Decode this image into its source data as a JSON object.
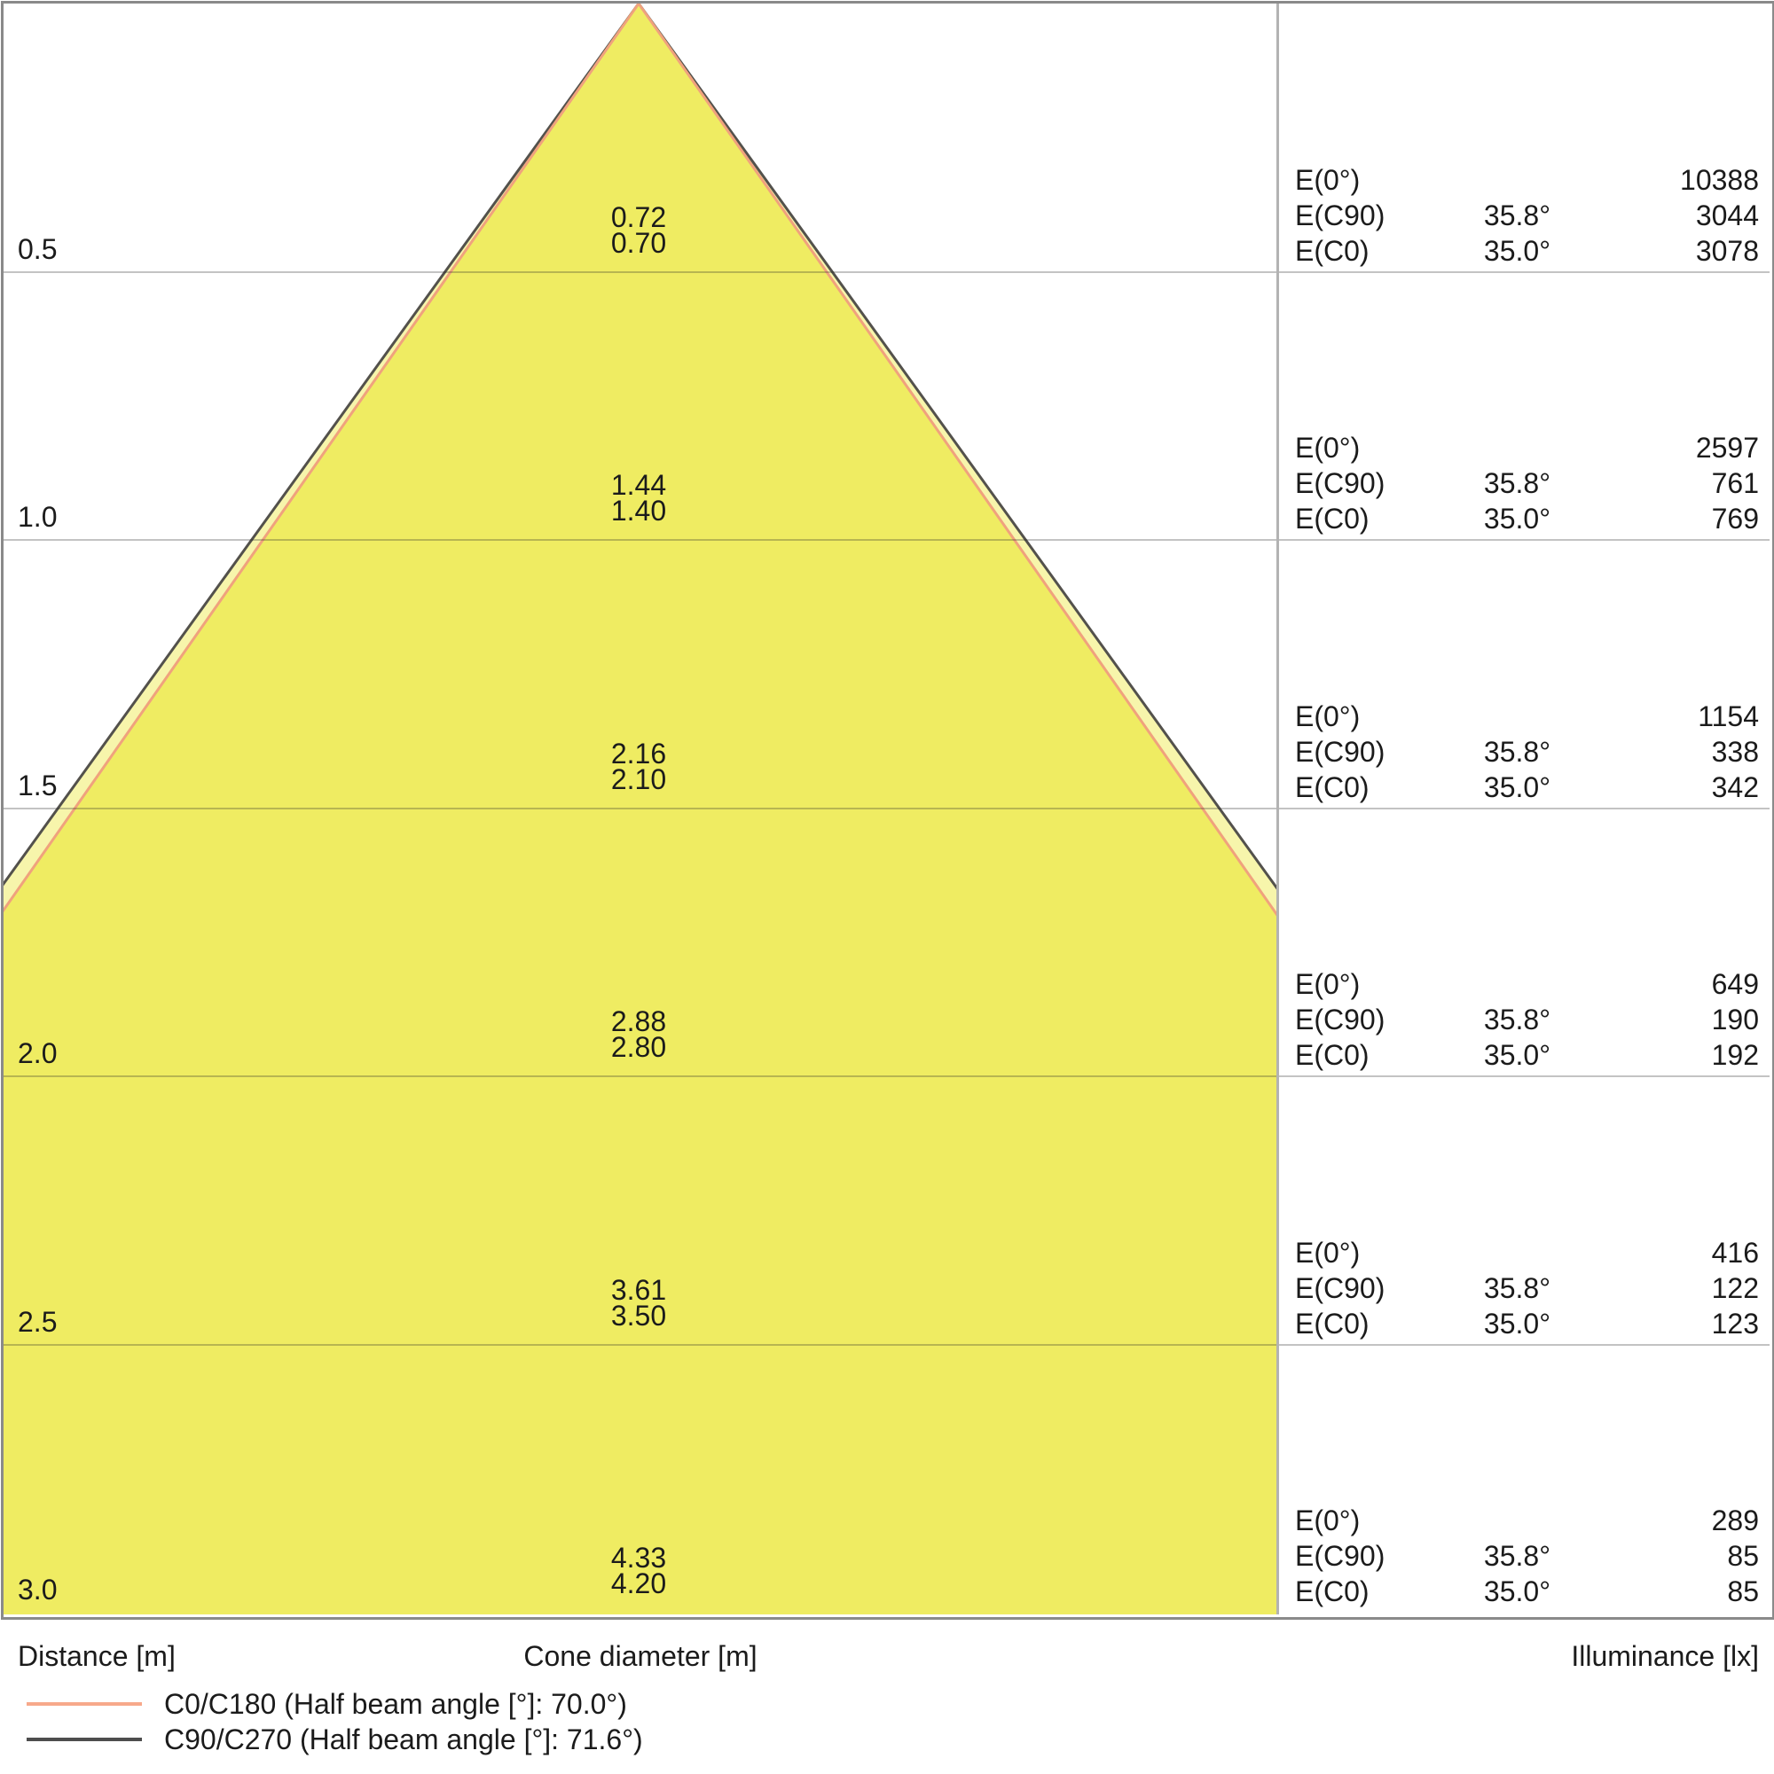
{
  "chart_data": {
    "type": "area",
    "description": "Luminaire light cone diagram: cone diameter and illuminance vs distance",
    "axis_labels": {
      "distance": "Distance [m]",
      "cone_diameter": "Cone diameter [m]",
      "illuminance": "Illuminance [lx]"
    },
    "row_labels": {
      "e0": "E(0°)",
      "ec90": "E(C90)",
      "ec0": "E(C0)"
    },
    "max_distance_m": 3.0,
    "grid_step_m": 0.5,
    "rows": [
      {
        "distance": "0.5",
        "distance_m": 0.5,
        "diameter_c90": "0.72",
        "diameter_c0": "0.70",
        "e0": "10388",
        "ec90_angle": "35.8°",
        "ec90": "3044",
        "ec0_angle": "35.0°",
        "ec0": "3078"
      },
      {
        "distance": "1.0",
        "distance_m": 1.0,
        "diameter_c90": "1.44",
        "diameter_c0": "1.40",
        "e0": "2597",
        "ec90_angle": "35.8°",
        "ec90": "761",
        "ec0_angle": "35.0°",
        "ec0": "769"
      },
      {
        "distance": "1.5",
        "distance_m": 1.5,
        "diameter_c90": "2.16",
        "diameter_c0": "2.10",
        "e0": "1154",
        "ec90_angle": "35.8°",
        "ec90": "338",
        "ec0_angle": "35.0°",
        "ec0": "342"
      },
      {
        "distance": "2.0",
        "distance_m": 2.0,
        "diameter_c90": "2.88",
        "diameter_c0": "2.80",
        "e0": "649",
        "ec90_angle": "35.8°",
        "ec90": "190",
        "ec0_angle": "35.0°",
        "ec0": "192"
      },
      {
        "distance": "2.5",
        "distance_m": 2.5,
        "diameter_c90": "3.61",
        "diameter_c0": "3.50",
        "e0": "416",
        "ec90_angle": "35.8°",
        "ec90": "122",
        "ec0_angle": "35.0°",
        "ec0": "123"
      },
      {
        "distance": "3.0",
        "distance_m": 3.0,
        "diameter_c90": "4.33",
        "diameter_c0": "4.20",
        "e0": "289",
        "ec90_angle": "35.8°",
        "ec90": "85",
        "ec0_angle": "35.0°",
        "ec0": "85"
      }
    ],
    "series": [
      {
        "name": "C0/C180",
        "half_beam_angle_deg": 70.0,
        "legend_label": "C0/C180 (Half beam angle [°]: 70.0°)",
        "line_color": "#f0a27d",
        "swatch_color": "#f7a98b"
      },
      {
        "name": "C90/C270",
        "half_beam_angle_deg": 71.6,
        "legend_label": "C90/C270 (Half beam angle [°]: 71.6°)",
        "line_color": "#53514c",
        "swatch_color": "#4d4d4d"
      }
    ],
    "colors": {
      "cone_fill": "#efec62",
      "cone_outer_fill": "#f7f5ab",
      "gridline": "rgba(40,40,40,0.28)",
      "border": "#8a8a8a"
    },
    "layout_hints": {
      "legend_position": "bottom-left",
      "grid": "horizontal lines every 0.5 m",
      "illuminance_panel": "right"
    }
  }
}
